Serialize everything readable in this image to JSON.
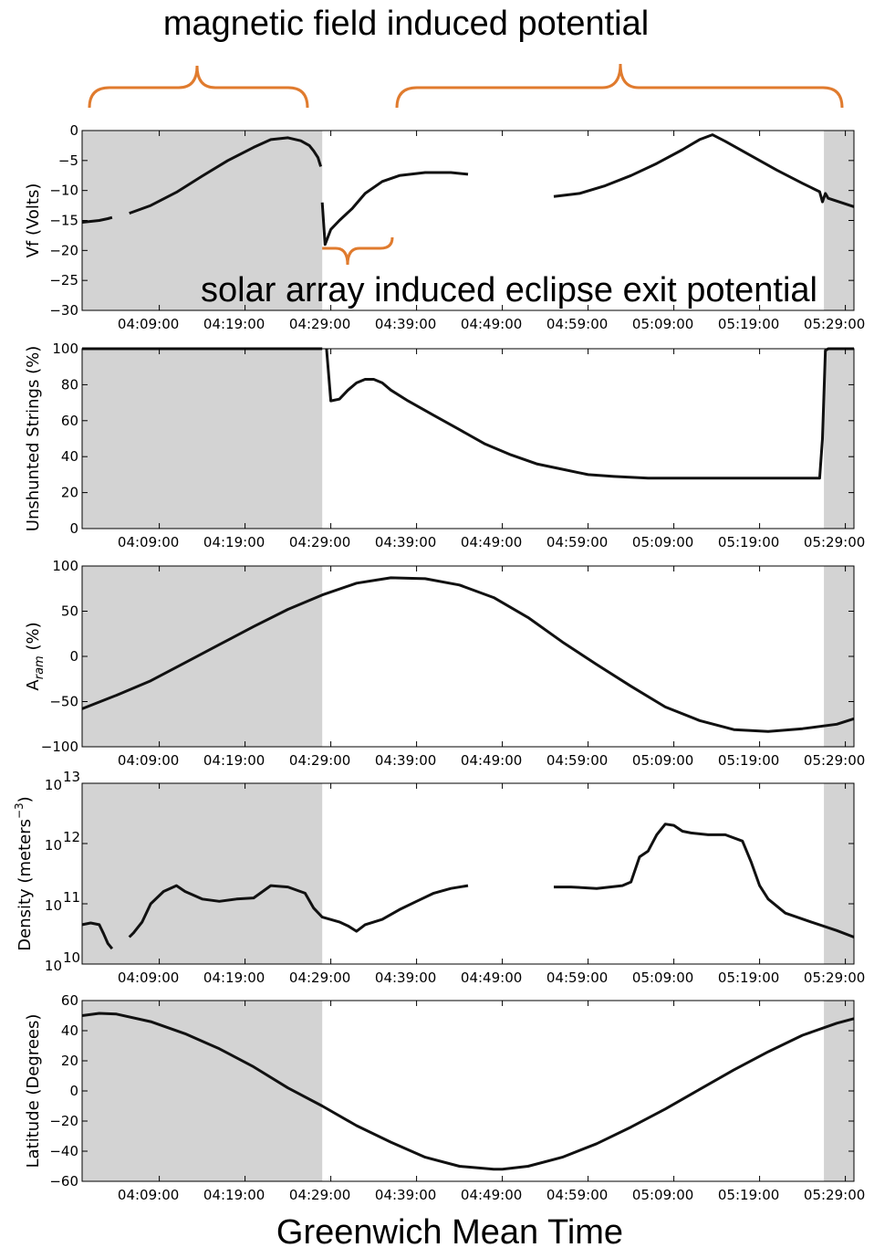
{
  "annotations": {
    "magnetic": "magnetic field induced potential",
    "solar": "solar array induced eclipse exit potential",
    "bracket_color": "#E07B2E"
  },
  "figure": {
    "xlabel": "Greenwich Mean Time",
    "eclipse_shade_color": "#d3d3d3",
    "eclipse_intervals": [
      [
        "04:00:00",
        "04:28:00"
      ],
      [
        "05:26:30",
        "05:30:00"
      ]
    ]
  },
  "chart_data": [
    {
      "type": "line",
      "id": "vf",
      "ylabel": "Vf  (Volts)",
      "ylim": [
        -30,
        0
      ],
      "yticks": [
        0,
        -5,
        -10,
        -15,
        -20,
        -25,
        -30
      ],
      "ytick_labels": [
        "0",
        "−5",
        "−10",
        "−15",
        "−20",
        "−25",
        "−30"
      ],
      "xlim": [
        "04:00:00",
        "05:30:00"
      ],
      "xtick_labels": [
        "04:09:00",
        "04:19:00",
        "04:29:00",
        "04:39:00",
        "04:49:00",
        "04:59:00",
        "05:09:00",
        "05:19:00",
        "05:29:00"
      ],
      "series": [
        {
          "segments": [
            {
              "x": [
                "04:00:00",
                "04:02:00",
                "04:03:00",
                "04:03:30"
              ],
              "y": [
                -15.3,
                -15,
                -14.7,
                -14.5
              ]
            },
            {
              "x": [
                "04:05:30",
                "04:08:00",
                "04:11:00",
                "04:14:00",
                "04:17:00",
                "04:20:00",
                "04:22:00",
                "04:24:00",
                "04:25:30",
                "04:26:30",
                "04:27:00",
                "04:27:30",
                "04:27:50"
              ],
              "y": [
                -13.8,
                -12.5,
                -10.3,
                -7.6,
                -5.0,
                -2.8,
                -1.5,
                -1.2,
                -1.7,
                -2.5,
                -3.4,
                -4.5,
                -6.0
              ]
            },
            {
              "x": [
                "04:28:00",
                "04:28:20",
                "04:29:00",
                "04:30:00",
                "04:31:30",
                "04:33:00",
                "04:35:00",
                "04:37:00",
                "04:40:00",
                "04:43:00",
                "04:45:00"
              ],
              "y": [
                -12,
                -19.0,
                -16.5,
                -15.0,
                -13.0,
                -10.5,
                -8.5,
                -7.5,
                -7.0,
                -7.0,
                -7.3
              ]
            },
            {
              "x": [
                "04:55:00",
                "04:58:00",
                "05:01:00",
                "05:04:00",
                "05:07:00",
                "05:10:00",
                "05:12:00",
                "05:13:30",
                "05:15:00",
                "05:18:00",
                "05:21:00",
                "05:24:00",
                "05:26:00",
                "05:26:20",
                "05:26:40",
                "05:27:00",
                "05:30:00"
              ],
              "y": [
                -11,
                -10.5,
                -9.2,
                -7.5,
                -5.5,
                -3.2,
                -1.5,
                -0.7,
                -1.8,
                -4.2,
                -6.6,
                -8.8,
                -10.2,
                -11.9,
                -10.5,
                -11.3,
                -12.7
              ]
            }
          ]
        }
      ]
    },
    {
      "type": "line",
      "id": "strings",
      "ylabel": "Unshunted Strings (%)",
      "ylim": [
        0,
        100
      ],
      "yticks": [
        0,
        20,
        40,
        60,
        80,
        100
      ],
      "ytick_labels": [
        "0",
        "20",
        "40",
        "60",
        "80",
        "100"
      ],
      "xlim": [
        "04:00:00",
        "05:30:00"
      ],
      "xtick_labels": [
        "04:09:00",
        "04:19:00",
        "04:29:00",
        "04:39:00",
        "04:49:00",
        "04:59:00",
        "05:09:00",
        "05:19:00",
        "05:29:00"
      ],
      "series": [
        {
          "segments": [
            {
              "x": [
                "04:00:00",
                "04:28:00"
              ],
              "y": [
                100,
                100
              ]
            },
            {
              "x": [
                "04:28:30",
                "04:29:00",
                "04:30:00",
                "04:31:00",
                "04:32:00",
                "04:33:00",
                "04:34:00",
                "04:35:00",
                "04:36:00",
                "04:38:00",
                "04:41:00",
                "04:44:00",
                "04:47:00",
                "04:50:00",
                "04:53:00",
                "04:56:00",
                "04:59:00",
                "05:02:00",
                "05:06:00",
                "05:10:00",
                "05:14:00",
                "05:18:00",
                "05:22:00",
                "05:26:00",
                "05:26:20",
                "05:26:40",
                "05:27:00",
                "05:30:00"
              ],
              "y": [
                100,
                71,
                72,
                77,
                81,
                83,
                83,
                81,
                77,
                71,
                63,
                55,
                47,
                41,
                36,
                33,
                30,
                29,
                28,
                28,
                28,
                28,
                28,
                28,
                50,
                99,
                100,
                100
              ]
            }
          ]
        }
      ]
    },
    {
      "type": "line",
      "id": "aram",
      "ylabel": "A",
      "ylabel_sub": "ram",
      "ylabel_unit": " (%)",
      "ylim": [
        -100,
        100
      ],
      "yticks": [
        100,
        50,
        0,
        -50,
        -100
      ],
      "ytick_labels": [
        "100",
        "50",
        "0",
        "−50",
        "−100"
      ],
      "xlim": [
        "04:00:00",
        "05:30:00"
      ],
      "xtick_labels": [
        "04:09:00",
        "04:19:00",
        "04:29:00",
        "04:39:00",
        "04:49:00",
        "04:59:00",
        "05:09:00",
        "05:19:00",
        "05:29:00"
      ],
      "series": [
        {
          "segments": [
            {
              "x": [
                "04:00:00",
                "04:04:00",
                "04:08:00",
                "04:12:00",
                "04:16:00",
                "04:20:00",
                "04:24:00",
                "04:28:00",
                "04:32:00",
                "04:36:00",
                "04:40:00",
                "04:44:00",
                "04:48:00",
                "04:52:00",
                "04:56:00",
                "05:00:00",
                "05:04:00",
                "05:08:00",
                "05:12:00",
                "05:16:00",
                "05:20:00",
                "05:24:00",
                "05:28:00",
                "05:30:00"
              ],
              "y": [
                -58,
                -43,
                -27,
                -7,
                13,
                33,
                52,
                68,
                81,
                87,
                86,
                79,
                65,
                43,
                16,
                -9,
                -33,
                -56,
                -71,
                -81,
                -83,
                -80,
                -75,
                -69
              ]
            }
          ]
        }
      ]
    },
    {
      "type": "line",
      "id": "density",
      "ylabel": "Density (meters",
      "ylabel_sup": "−3",
      "ylabel_close": ")",
      "yscale": "log",
      "ylim": [
        10000000000.0,
        10000000000000.0
      ],
      "yticks": [
        10000000000000.0,
        1000000000000.0,
        100000000000.0,
        10000000000.0
      ],
      "ytick_base": "10",
      "ytick_exps": [
        "13",
        "12",
        "11",
        "10"
      ],
      "xlim": [
        "04:00:00",
        "05:30:00"
      ],
      "xtick_labels": [
        "04:09:00",
        "04:19:00",
        "04:29:00",
        "04:39:00",
        "04:49:00",
        "04:59:00",
        "05:09:00",
        "05:19:00",
        "05:29:00"
      ],
      "series": [
        {
          "segments": [
            {
              "x": [
                "04:00:00",
                "04:01:00",
                "04:02:00",
                "04:02:30",
                "04:03:00",
                "04:03:30"
              ],
              "y": [
                45000000000.0,
                48000000000.0,
                45000000000.0,
                32000000000.0,
                22000000000.0,
                18000000000.0
              ]
            },
            {
              "x": [
                "04:05:30",
                "04:06:00",
                "04:07:00",
                "04:08:00",
                "04:09:30",
                "04:11:00",
                "04:12:00",
                "04:14:00",
                "04:16:00",
                "04:18:00",
                "04:20:00",
                "04:22:00",
                "04:24:00",
                "04:26:00",
                "04:27:00",
                "04:28:00",
                "04:30:00",
                "04:31:00",
                "04:32:00",
                "04:33:00",
                "04:35:00",
                "04:37:00",
                "04:39:00",
                "04:41:00",
                "04:43:00",
                "04:45:00"
              ],
              "y": [
                28000000000.0,
                33000000000.0,
                50000000000.0,
                100000000000.0,
                160000000000.0,
                200000000000.0,
                160000000000.0,
                120000000000.0,
                110000000000.0,
                120000000000.0,
                125000000000.0,
                200000000000.0,
                190000000000.0,
                150000000000.0,
                85000000000.0,
                60000000000.0,
                50000000000.0,
                43000000000.0,
                35000000000.0,
                45000000000.0,
                55000000000.0,
                80000000000.0,
                110000000000.0,
                150000000000.0,
                180000000000.0,
                200000000000.0
              ]
            },
            {
              "x": [
                "04:55:00",
                "04:57:00",
                "05:00:00",
                "05:03:00",
                "05:04:00",
                "05:05:00",
                "05:06:00",
                "05:07:00",
                "05:08:00",
                "05:09:00",
                "05:10:00",
                "05:11:00",
                "05:13:00",
                "05:15:00",
                "05:17:00",
                "05:18:00",
                "05:19:00",
                "05:20:00",
                "05:22:00",
                "05:25:00",
                "05:28:00",
                "05:30:00"
              ],
              "y": [
                190000000000.0,
                190000000000.0,
                180000000000.0,
                200000000000.0,
                230000000000.0,
                600000000000.0,
                750000000000.0,
                1400000000000.0,
                2100000000000.0,
                2000000000000.0,
                1600000000000.0,
                1500000000000.0,
                1400000000000.0,
                1400000000000.0,
                1100000000000.0,
                500000000000.0,
                200000000000.0,
                120000000000.0,
                70000000000.0,
                50000000000.0,
                36000000000.0,
                28000000000.0
              ]
            }
          ]
        }
      ]
    },
    {
      "type": "line",
      "id": "latitude",
      "ylabel": "Latitude (Degrees)",
      "ylim": [
        -60,
        60
      ],
      "yticks": [
        60,
        40,
        20,
        0,
        -20,
        -40,
        -60
      ],
      "ytick_labels": [
        "60",
        "40",
        "20",
        "0",
        "−20",
        "−40",
        "−60"
      ],
      "xlim": [
        "04:00:00",
        "05:30:00"
      ],
      "xtick_labels": [
        "04:09:00",
        "04:19:00",
        "04:29:00",
        "04:39:00",
        "04:49:00",
        "04:59:00",
        "05:09:00",
        "05:19:00",
        "05:29:00"
      ],
      "series": [
        {
          "segments": [
            {
              "x": [
                "04:00:00",
                "04:02:00",
                "04:04:00",
                "04:08:00",
                "04:12:00",
                "04:16:00",
                "04:20:00",
                "04:24:00",
                "04:28:00",
                "04:32:00",
                "04:36:00",
                "04:40:00",
                "04:44:00",
                "04:48:00",
                "04:49:00",
                "04:52:00",
                "04:56:00",
                "05:00:00",
                "05:04:00",
                "05:08:00",
                "05:12:00",
                "05:16:00",
                "05:20:00",
                "05:24:00",
                "05:28:00",
                "05:30:00"
              ],
              "y": [
                50,
                51.5,
                51,
                46,
                38,
                28,
                16,
                2,
                -10,
                -23,
                -34,
                -44,
                -50,
                -52,
                -52,
                -50,
                -44,
                -35,
                -24,
                -12,
                1,
                14,
                26,
                37,
                45,
                48
              ]
            }
          ]
        }
      ]
    }
  ]
}
